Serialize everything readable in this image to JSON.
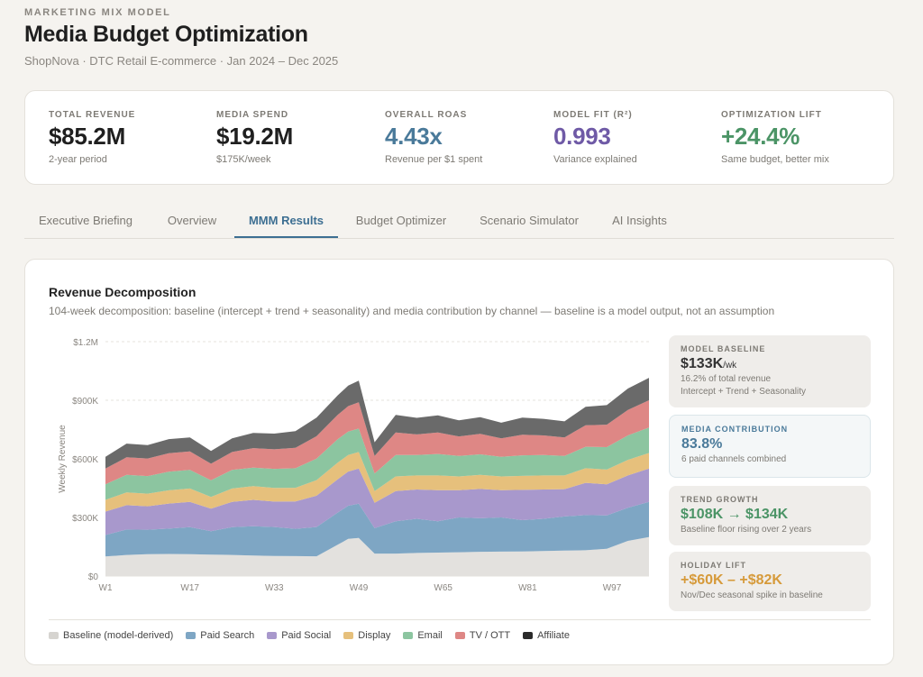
{
  "header": {
    "eyebrow": "MARKETING MIX MODEL",
    "title": "Media Budget Optimization",
    "subtitle": "ShopNova · DTC Retail E-commerce · Jan 2024 – Dec 2025"
  },
  "kpis": [
    {
      "label": "TOTAL REVENUE",
      "value": "$85.2M",
      "sub": "2-year period",
      "color": "#1f1f1f"
    },
    {
      "label": "MEDIA SPEND",
      "value": "$19.2M",
      "sub": "$175K/week",
      "color": "#1f1f1f"
    },
    {
      "label": "OVERALL ROAS",
      "value": "4.43x",
      "sub": "Revenue per $1 spent",
      "color": "#4a7a9a"
    },
    {
      "label": "MODEL FIT (R²)",
      "value": "0.993",
      "sub": "Variance explained",
      "color": "#6f5aa6"
    },
    {
      "label": "OPTIMIZATION LIFT",
      "value": "+24.4%",
      "sub": "Same budget, better mix",
      "color": "#4b9466"
    }
  ],
  "tabs": [
    "Executive Briefing",
    "Overview",
    "MMM Results",
    "Budget Optimizer",
    "Scenario Simulator",
    "AI Insights"
  ],
  "active_tab": "MMM Results",
  "panel": {
    "title": "Revenue Decomposition",
    "description": "104-week decomposition: baseline (intercept + trend + seasonality) and media contribution by channel — baseline is a model output, not an assumption"
  },
  "side_boxes": [
    {
      "label": "MODEL BASELINE",
      "value": "$133K",
      "value_suffix": "/wk",
      "note1": "16.2% of total revenue",
      "note2": "Intercept + Trend + Seasonality",
      "color": "#333333",
      "label_color": "#7d7a74"
    },
    {
      "label": "MEDIA CONTRIBUTION",
      "value": "83.8%",
      "value_suffix": "",
      "note1": "6 paid channels combined",
      "note2": "",
      "color": "#4a7a9a",
      "label_color": "#4a7a9a"
    },
    {
      "label": "TREND GROWTH",
      "value": "$108K → $134K",
      "value_suffix": "",
      "note1": "Baseline floor rising over 2 years",
      "note2": "",
      "color": "#4b9466",
      "label_color": "#7d7a74"
    },
    {
      "label": "HOLIDAY LIFT",
      "value": "+$60K – +$82K",
      "value_suffix": "",
      "note1": "Nov/Dec seasonal spike in baseline",
      "note2": "",
      "color": "#d69a3a",
      "label_color": "#7d7a74"
    }
  ],
  "chart_data": {
    "type": "area",
    "stacked": true,
    "ylabel": "Weekly Revenue",
    "ylim": [
      0,
      1200000
    ],
    "y_ticks": [
      "$0",
      "$300K",
      "$600K",
      "$900K",
      "$1.2M"
    ],
    "x_ticks": [
      "W1",
      "W17",
      "W33",
      "W49",
      "W65",
      "W81",
      "W97"
    ],
    "x": [
      1,
      5,
      9,
      13,
      17,
      21,
      25,
      29,
      33,
      37,
      41,
      45,
      47,
      49,
      52,
      56,
      60,
      64,
      68,
      72,
      76,
      80,
      84,
      88,
      92,
      96,
      100,
      104
    ],
    "series": [
      {
        "name": "Baseline (model-derived)",
        "color": "#e3e1de",
        "values": [
          100000,
          108000,
          112000,
          113000,
          112000,
          110000,
          108000,
          105000,
          103000,
          102000,
          101000,
          160000,
          190000,
          195000,
          115000,
          115000,
          118000,
          120000,
          122000,
          124000,
          125000,
          126000,
          128000,
          130000,
          132000,
          140000,
          180000,
          200000
        ]
      },
      {
        "name": "Paid Search",
        "color": "#7ea6c4",
        "values": [
          110000,
          130000,
          125000,
          130000,
          138000,
          120000,
          142000,
          150000,
          148000,
          140000,
          150000,
          165000,
          170000,
          175000,
          130000,
          165000,
          175000,
          160000,
          178000,
          172000,
          175000,
          160000,
          165000,
          175000,
          180000,
          170000,
          170000,
          180000
        ]
      },
      {
        "name": "Paid Social",
        "color": "#a898cc",
        "values": [
          120000,
          125000,
          120000,
          128000,
          130000,
          115000,
          130000,
          135000,
          130000,
          140000,
          160000,
          170000,
          175000,
          180000,
          130000,
          155000,
          150000,
          160000,
          140000,
          150000,
          140000,
          155000,
          150000,
          140000,
          165000,
          160000,
          165000,
          170000
        ]
      },
      {
        "name": "Display",
        "color": "#e6c07c",
        "values": [
          60000,
          65000,
          65000,
          68000,
          68000,
          60000,
          68000,
          70000,
          70000,
          70000,
          80000,
          85000,
          85000,
          85000,
          60000,
          75000,
          72000,
          75000,
          70000,
          72000,
          70000,
          72000,
          72000,
          70000,
          75000,
          75000,
          80000,
          80000
        ]
      },
      {
        "name": "Email",
        "color": "#8cc5a0",
        "values": [
          80000,
          90000,
          90000,
          95000,
          95000,
          85000,
          95000,
          95000,
          98000,
          100000,
          110000,
          120000,
          120000,
          120000,
          90000,
          110000,
          105000,
          110000,
          105000,
          105000,
          100000,
          105000,
          105000,
          100000,
          110000,
          115000,
          125000,
          130000
        ]
      },
      {
        "name": "TV / OTT",
        "color": "#de8785",
        "values": [
          80000,
          90000,
          90000,
          95000,
          95000,
          85000,
          92000,
          100000,
          100000,
          105000,
          115000,
          125000,
          130000,
          135000,
          90000,
          115000,
          105000,
          110000,
          100000,
          105000,
          95000,
          105000,
          100000,
          95000,
          110000,
          115000,
          130000,
          140000
        ]
      },
      {
        "name": "Affiliate",
        "color": "#6a6a6a",
        "values": [
          60000,
          70000,
          68000,
          72000,
          72000,
          65000,
          70000,
          78000,
          80000,
          85000,
          95000,
          100000,
          105000,
          110000,
          70000,
          90000,
          85000,
          88000,
          82000,
          85000,
          80000,
          88000,
          85000,
          82000,
          95000,
          100000,
          110000,
          115000
        ]
      }
    ]
  }
}
